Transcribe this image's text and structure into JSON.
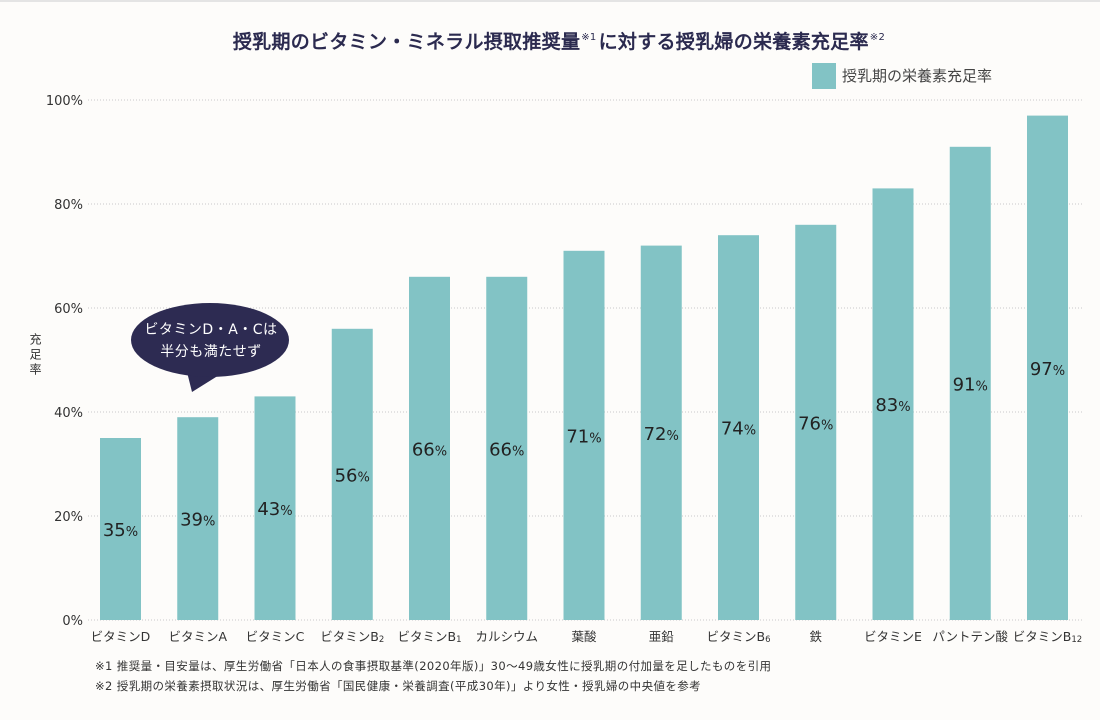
{
  "title": {
    "part1": "授乳期のビタミン・ミネラル摂取推奨量",
    "note1": "※1",
    "part2": "に対する授乳婦の栄養素充足率",
    "note2": "※2"
  },
  "callout": {
    "line1": "ビタミンD・A・Cは",
    "line2": "半分も満たせず"
  },
  "footnotes": [
    "※1 推奨量・目安量は、厚生労働省「日本人の食事摂取基準(2020年版)」30〜49歳女性に授乳期の付加量を足したものを引用",
    "※2 授乳期の栄養素摂取状況は、厚生労働省「国民健康・栄養調査(平成30年)」より女性・授乳婦の中央値を参考"
  ],
  "colors": {
    "bar": "#82c3c5",
    "title": "#2b2a4f",
    "callout": "#2d2b52"
  },
  "chart_data": {
    "type": "bar",
    "title": "授乳期のビタミン・ミネラル摂取推奨量※1に対する授乳婦の栄養素充足率※2",
    "categories": [
      "ビタミンD",
      "ビタミンA",
      "ビタミンC",
      "ビタミンB2",
      "ビタミンB1",
      "カルシウム",
      "葉酸",
      "亜鉛",
      "ビタミンB6",
      "鉄",
      "ビタミンE",
      "パントテン酸",
      "ビタミンB12"
    ],
    "x_tick_labels": [
      {
        "main": "ビタミンD",
        "sub": ""
      },
      {
        "main": "ビタミンA",
        "sub": ""
      },
      {
        "main": "ビタミンC",
        "sub": ""
      },
      {
        "main": "ビタミンB",
        "sub": "2"
      },
      {
        "main": "ビタミンB",
        "sub": "1"
      },
      {
        "main": "カルシウム",
        "sub": ""
      },
      {
        "main": "葉酸",
        "sub": ""
      },
      {
        "main": "亜鉛",
        "sub": ""
      },
      {
        "main": "ビタミンB",
        "sub": "6"
      },
      {
        "main": "鉄",
        "sub": ""
      },
      {
        "main": "ビタミンE",
        "sub": ""
      },
      {
        "main": "パントテン酸",
        "sub": ""
      },
      {
        "main": "ビタミンB",
        "sub": "12"
      }
    ],
    "series": [
      {
        "name": "授乳期の栄養素充足率",
        "values": [
          35,
          39,
          43,
          56,
          66,
          66,
          71,
          72,
          74,
          76,
          83,
          91,
          97
        ]
      }
    ],
    "value_suffix": "%",
    "xlabel": "",
    "ylabel": "充足率",
    "ylim": [
      0,
      100
    ],
    "yticks": [
      0,
      20,
      40,
      60,
      80,
      100
    ],
    "ytick_labels": [
      "0%",
      "20%",
      "40%",
      "60%",
      "80%",
      "100%"
    ],
    "grid": true,
    "legend": {
      "entries": [
        "授乳期の栄養素充足率"
      ],
      "position": "top-right"
    },
    "annotations": [
      "ビタミンD・A・Cは半分も満たせず"
    ]
  }
}
